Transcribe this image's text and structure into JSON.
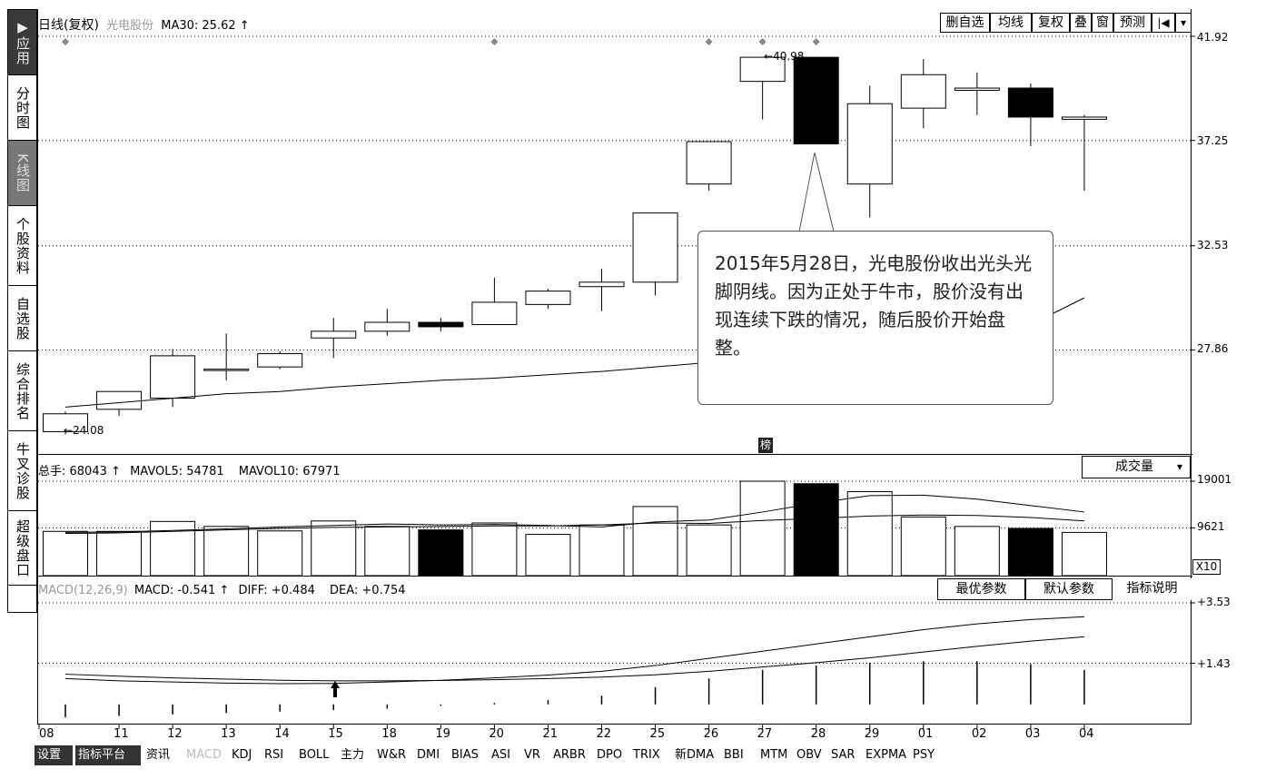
{
  "nav": [
    {
      "label": "应用",
      "icon": "play-icon",
      "state": "active"
    },
    {
      "label": "分时图",
      "state": "normal"
    },
    {
      "label": "K线图",
      "state": "kline"
    },
    {
      "label": "个股资料",
      "state": "normal"
    },
    {
      "label": "自选股",
      "state": "normal"
    },
    {
      "label": "综合排名",
      "state": "normal"
    },
    {
      "label": "牛叉诊股",
      "state": "normal"
    },
    {
      "label": "超级盘口",
      "state": "normal"
    }
  ],
  "header": {
    "title": "日线(复权)",
    "stock": "光电股份",
    "ma": "MA30: 25.62",
    "arrow": "↑"
  },
  "toolbar": {
    "delete_watch": "删自选",
    "ma_line": "均线",
    "adjust": "复权",
    "overlay": "叠",
    "window": "窗",
    "forecast": "预测",
    "first": "|◀",
    "dropdown": "▾"
  },
  "price_axis": [
    "41.92",
    "37.25",
    "32.53",
    "27.86"
  ],
  "price_annotations": {
    "high": "40.98",
    "low": "24.08",
    "marker": "榜"
  },
  "callout": {
    "text": "2015年5月28日，光电股份收出光头光脚阴线。因为正处于牛市，股价没有出现连续下跌的情况，随后股价开始盘整。"
  },
  "volume": {
    "label": "总手: 68043",
    "arrow": "↑",
    "mavol5": "MAVOL5: 54781",
    "mavol10": "MAVOL10: 67971",
    "selector": "成交量",
    "selector_arrow": "▾",
    "axis": [
      "19001",
      "9621"
    ],
    "unit": "X10"
  },
  "macd": {
    "label": "MACD(12,26,9)",
    "macd": "MACD: -0.541",
    "arrow": "↑",
    "diff": "DIFF: +0.484",
    "dea": "DEA: +0.754",
    "axis": [
      "+3.53",
      "+1.43"
    ],
    "btn_best": "最优参数",
    "btn_default": "默认参数",
    "btn_explain": "指标说明"
  },
  "x_labels": [
    "08",
    "11",
    "12",
    "13",
    "14",
    "15",
    "18",
    "19",
    "20",
    "21",
    "22",
    "25",
    "26",
    "27",
    "28",
    "29",
    "01",
    "02",
    "03",
    "04"
  ],
  "tabs": [
    "设置",
    "指标平台",
    "资讯",
    "MACD",
    "KDJ",
    "RSI",
    "BOLL",
    "主力",
    "W&R",
    "DMI",
    "BIAS",
    "ASI",
    "VR",
    "ARBR",
    "DPO",
    "TRIX",
    "新DMA",
    "BBI",
    "MTM",
    "OBV",
    "SAR",
    "EXPMA",
    "PSY"
  ],
  "colors": {
    "up": "#ffffff",
    "down": "#000000",
    "bg": "#ffffff",
    "line": "#000000"
  },
  "chart_data": {
    "type": "candlestick",
    "x": [
      "08",
      "11",
      "12",
      "13",
      "14",
      "15",
      "18",
      "19",
      "20",
      "21",
      "22",
      "25",
      "26",
      "27",
      "28",
      "29",
      "01",
      "02",
      "03",
      "04"
    ],
    "ohlc": [
      [
        24.2,
        25.0,
        24.08,
        25.1
      ],
      [
        25.2,
        26.0,
        24.9,
        25.9
      ],
      [
        25.7,
        27.6,
        25.3,
        27.9
      ],
      [
        27.0,
        27.0,
        26.5,
        28.6
      ],
      [
        27.1,
        27.7,
        27.0,
        27.8
      ],
      [
        28.4,
        28.7,
        27.5,
        29.3
      ],
      [
        28.7,
        29.1,
        28.5,
        29.7
      ],
      [
        29.1,
        28.9,
        28.7,
        29.3
      ],
      [
        29.0,
        30.0,
        29.0,
        31.1
      ],
      [
        29.9,
        30.5,
        29.7,
        30.6
      ],
      [
        30.7,
        30.9,
        29.6,
        31.5
      ],
      [
        30.9,
        34.0,
        30.3,
        34.0
      ],
      [
        35.3,
        37.2,
        35.0,
        37.2
      ],
      [
        39.9,
        40.98,
        38.2,
        40.98
      ],
      [
        40.98,
        37.1,
        37.1,
        40.98
      ],
      [
        35.3,
        38.9,
        33.8,
        39.7
      ],
      [
        38.7,
        40.2,
        37.8,
        40.9
      ],
      [
        39.5,
        39.6,
        38.4,
        40.3
      ],
      [
        39.6,
        38.3,
        37.0,
        39.8
      ],
      [
        38.2,
        38.3,
        35.0,
        38.4
      ]
    ],
    "ma30": [
      25.3,
      25.5,
      25.7,
      25.9,
      26.0,
      26.2,
      26.35,
      26.5,
      26.6,
      26.75,
      26.9,
      27.1,
      27.3,
      27.5,
      27.7,
      27.9,
      28.0,
      28.2,
      29.0,
      30.2
    ],
    "volume": [
      8900,
      8900,
      10900,
      9900,
      9000,
      11000,
      9900,
      9200,
      10600,
      8300,
      10200,
      13900,
      10200,
      19000,
      18500,
      16900,
      11800,
      9900,
      9500,
      8700
    ],
    "volume_up": [
      true,
      true,
      true,
      true,
      true,
      true,
      true,
      false,
      true,
      true,
      true,
      true,
      true,
      true,
      false,
      true,
      true,
      true,
      false,
      true
    ],
    "mavol5": [
      8700,
      8800,
      9100,
      9400,
      9800,
      10100,
      10400,
      10200,
      10300,
      10100,
      9800,
      10800,
      11200,
      12800,
      14600,
      16100,
      16200,
      15400,
      14100,
      12800
    ],
    "mavol10": [
      8500,
      8600,
      8900,
      9200,
      9500,
      9700,
      9800,
      9900,
      10000,
      10000,
      10200,
      10600,
      10500,
      11100,
      11500,
      12000,
      12200,
      12100,
      11700,
      11000
    ],
    "diff": [
      0.9,
      0.82,
      0.78,
      0.74,
      0.72,
      0.73,
      0.78,
      0.84,
      0.92,
      1.02,
      1.15,
      1.35,
      1.6,
      1.85,
      2.1,
      2.35,
      2.6,
      2.8,
      2.95,
      3.05
    ],
    "dea": [
      1.05,
      0.98,
      0.92,
      0.88,
      0.84,
      0.82,
      0.82,
      0.83,
      0.86,
      0.9,
      0.95,
      1.03,
      1.15,
      1.3,
      1.45,
      1.62,
      1.82,
      2.02,
      2.2,
      2.35
    ],
    "macd_hist": [
      -0.45,
      -0.4,
      -0.35,
      -0.3,
      -0.25,
      -0.2,
      -0.15,
      -0.05,
      0.05,
      0.15,
      0.3,
      0.6,
      0.9,
      1.2,
      1.35,
      1.45,
      1.5,
      1.5,
      1.4,
      1.2
    ],
    "price_ylim": [
      23.2,
      41.92
    ],
    "volume_ylim": [
      0,
      19001
    ],
    "macd_ylim": [
      -0.7,
      3.53
    ],
    "grid": "dotted"
  }
}
